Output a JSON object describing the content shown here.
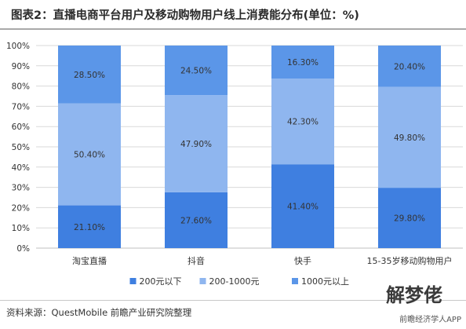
{
  "title": "图表2：直播电商平台用户及移动购物用户线上消费能分布(单位：%)",
  "source": "资料来源：QuestMobile 前瞻产业研究院整理",
  "watermark": {
    "logo_text": "解梦佬",
    "site": "前瞻经济学人APP"
  },
  "colors": {
    "s1": "#3f7fe0",
    "s2": "#8fb6ef",
    "s3": "#5b96e8",
    "grid": "#d9d9d9",
    "axis": "#bfbfbf",
    "text": "#333333",
    "label": "#333333"
  },
  "chart_data": {
    "type": "bar",
    "stacked": true,
    "categories": [
      "淘宝直播",
      "抖音",
      "快手",
      "15-35岁移动购物用户"
    ],
    "series": [
      {
        "name": "200元以下",
        "values": [
          21.1,
          27.6,
          41.4,
          29.8
        ],
        "labels": [
          "21.10%",
          "27.60%",
          "41.40%",
          "29.80%"
        ]
      },
      {
        "name": "200-1000元",
        "values": [
          50.4,
          47.9,
          42.3,
          49.8
        ],
        "labels": [
          "50.40%",
          "47.90%",
          "42.30%",
          "49.80%"
        ]
      },
      {
        "name": "1000元以上",
        "values": [
          28.5,
          24.5,
          16.3,
          20.4
        ],
        "labels": [
          "28.50%",
          "24.50%",
          "16.30%",
          "20.40%"
        ]
      }
    ],
    "yticks": [
      "0%",
      "10%",
      "20%",
      "30%",
      "40%",
      "50%",
      "60%",
      "70%",
      "80%",
      "90%",
      "100%"
    ],
    "ylim": [
      0,
      100
    ],
    "grid": true,
    "legend": "bottom"
  }
}
